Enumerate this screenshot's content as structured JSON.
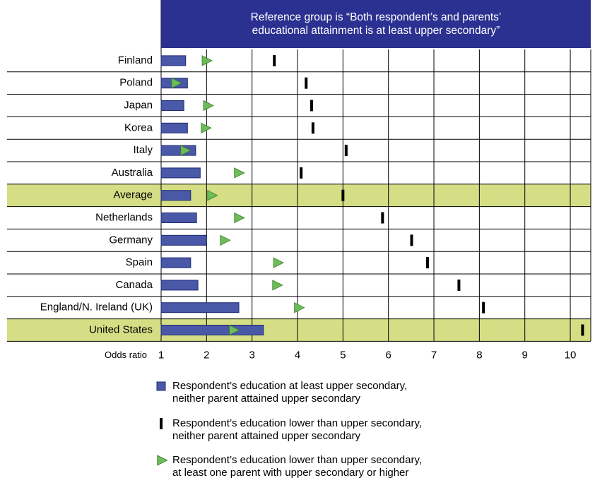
{
  "chart_data": {
    "type": "dot-bar",
    "title": [
      "Reference group is “Both respondent’s and parents’",
      "educational  attainment is at least upper secondary”"
    ],
    "xlabel": "Odds ratio",
    "categories": [
      "Finland",
      "Poland",
      "Japan",
      "Korea",
      "Italy",
      "Australia",
      "Average",
      "Netherlands",
      "Germany",
      "Spain",
      "Canada",
      "England/N. Ireland (UK)",
      "United States"
    ],
    "highlight": [
      6,
      12
    ],
    "highlight_color": "#d5de85",
    "xlim": [
      1,
      10.45
    ],
    "xticks": [
      1,
      2,
      3,
      4,
      5,
      6,
      7,
      8,
      9,
      10
    ],
    "grid": true,
    "series": [
      {
        "name": "Respondent’s education at least upper secondary,\nneither parent attained upper secondary",
        "color": "#4a58a8",
        "marker": "bar",
        "values": [
          1.54,
          1.58,
          1.5,
          1.58,
          1.76,
          1.86,
          1.65,
          1.78,
          2.0,
          1.65,
          1.81,
          2.71,
          3.25
        ]
      },
      {
        "name": "Respondent’s education lower than upper secondary,\nneither parent attained upper secondary",
        "color": "#000000",
        "marker": "tick",
        "values": [
          3.49,
          4.19,
          4.31,
          4.34,
          5.07,
          4.08,
          5.0,
          5.87,
          6.51,
          6.86,
          7.55,
          8.09,
          10.27
        ]
      },
      {
        "name": "Respondent’s education lower than upper secondary,\nat least one parent with upper secondary or higher",
        "color": "#6cbd58",
        "marker": "triangle",
        "values": [
          2.0,
          1.33,
          2.03,
          1.98,
          1.53,
          2.71,
          2.12,
          2.71,
          2.4,
          3.57,
          3.55,
          4.03,
          2.6
        ]
      }
    ]
  }
}
